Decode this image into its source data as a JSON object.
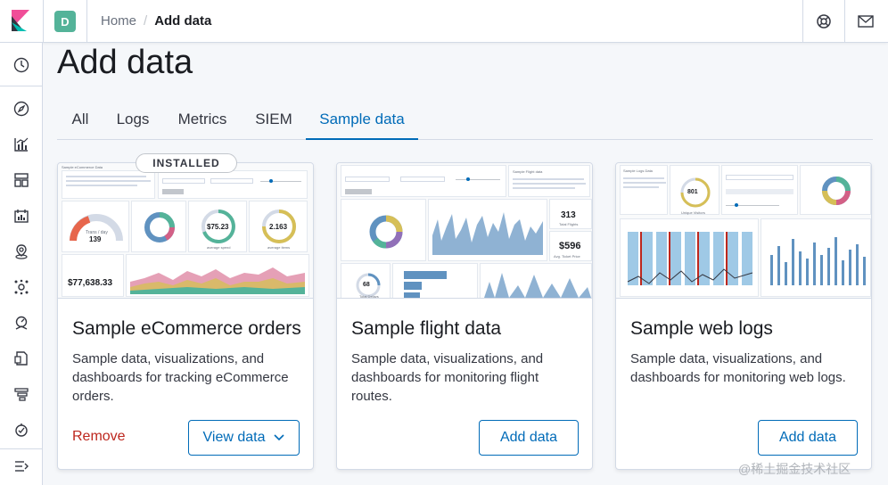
{
  "header": {
    "space_initial": "D",
    "breadcrumbs": [
      "Home",
      "Add data"
    ]
  },
  "page": {
    "title": "Add data"
  },
  "tabs": [
    {
      "label": "All",
      "active": false
    },
    {
      "label": "Logs",
      "active": false
    },
    {
      "label": "Metrics",
      "active": false
    },
    {
      "label": "SIEM",
      "active": false
    },
    {
      "label": "Sample data",
      "active": true
    }
  ],
  "cards": [
    {
      "title": "Sample eCommerce orders",
      "description": "Sample data, visualizations, and dashboards for tracking eCommerce orders.",
      "badge": "INSTALLED",
      "remove_label": "Remove",
      "primary_label": "View data",
      "thumb": {
        "heading": "Sample eCommerce Data",
        "gauge_value": "139",
        "gauge_label": "Trans / day",
        "spend_value": "$75.23",
        "spend_label": "average spend",
        "qty_value": "2.163",
        "qty_label": "average items",
        "total_value": "$77,638.33"
      }
    },
    {
      "title": "Sample flight data",
      "description": "Sample data, visualizations, and dashboards for monitoring flight routes.",
      "primary_label": "Add data",
      "thumb": {
        "heading": "Sample Flight data",
        "flights_value": "313",
        "flights_label": "Total Flights",
        "price_value": "$596",
        "price_label": "Avg. Ticket Price",
        "delays_value": "68",
        "delays_label": "Total Delays"
      }
    },
    {
      "title": "Sample web logs",
      "description": "Sample data, visualizations, and dashboards for monitoring web logs.",
      "primary_label": "Add data",
      "thumb": {
        "heading": "Sample Logs Data",
        "visitors_value": "801",
        "visitors_label": "Unique Visitors"
      }
    }
  ],
  "nav_icons": [
    "clock-icon",
    "compass-icon",
    "visualize-icon",
    "dashboard-icon",
    "canvas-icon",
    "maps-icon",
    "ml-icon",
    "metrics-icon",
    "logs-icon",
    "apm-icon",
    "uptime-icon",
    "collapse-icon"
  ],
  "watermark": "@稀土掘金技术社区",
  "colors": {
    "accent": "#006bb8",
    "danger": "#bd271e",
    "avatar": "#54b399"
  }
}
